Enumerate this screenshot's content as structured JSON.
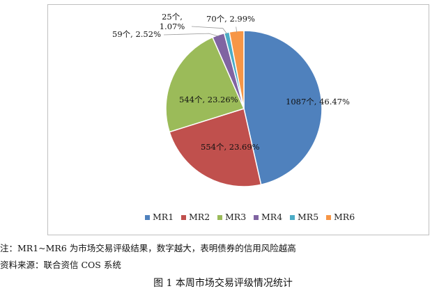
{
  "chart_data": {
    "type": "pie",
    "categories": [
      "MR1",
      "MR2",
      "MR3",
      "MR4",
      "MR5",
      "MR6"
    ],
    "values": [
      1087,
      554,
      544,
      59,
      25,
      70
    ],
    "percents": [
      "46.47%",
      "23.69%",
      "23.26%",
      "2.52%",
      "1.07%",
      "2.99%"
    ],
    "data_labels": [
      "1087个, 46.47%",
      "554个, 23.69%",
      "544个, 23.26%",
      "59个, 2.52%",
      "25个, 1.07%",
      "70个, 2.99%"
    ],
    "colors": [
      "#4f81bd",
      "#c0504d",
      "#9bbb59",
      "#8064a2",
      "#4bacc6",
      "#f79646"
    ],
    "legend_position": "bottom",
    "title": ""
  },
  "note": "注：MR1~MR6 为市场交易评级结果，数字越大，表明债券的信用风险越高",
  "source": "资料来源：联合资信 COS 系统",
  "caption": "图 1  本周市场交易评级情况统计"
}
